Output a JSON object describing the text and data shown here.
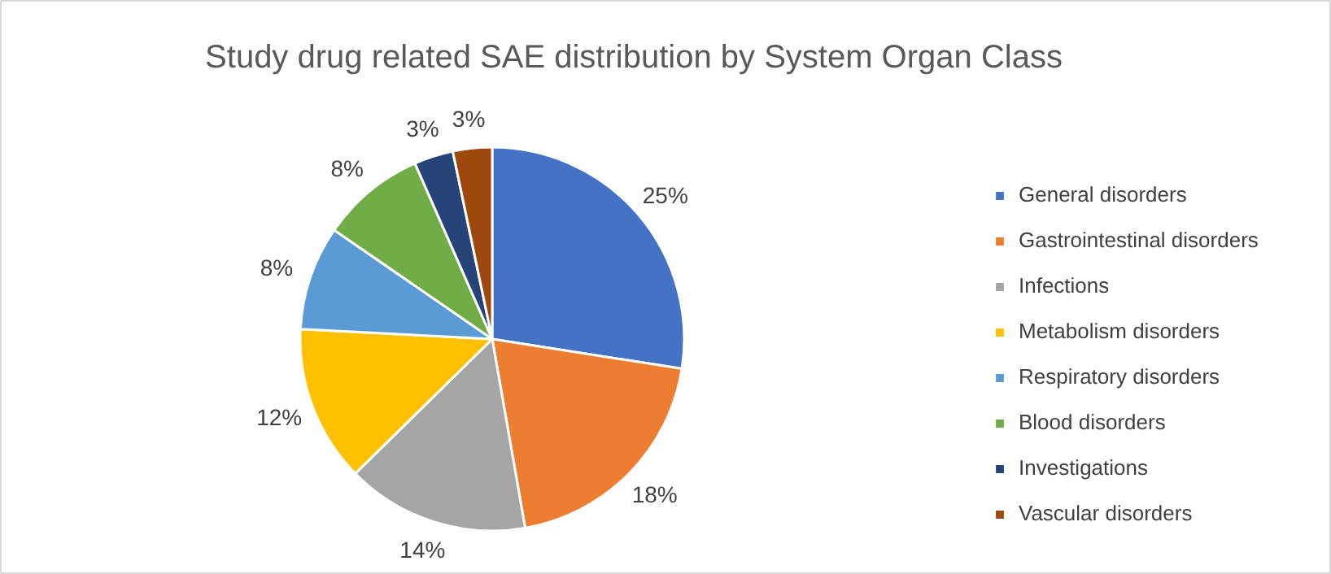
{
  "chart_data": {
    "type": "pie",
    "title": "Study drug related SAE distribution by System Organ Class",
    "categories": [
      "General disorders",
      "Gastrointestinal disorders",
      "Infections",
      "Metabolism disorders",
      "Respiratory disorders",
      "Blood disorders",
      "Investigations",
      "Vascular disorders"
    ],
    "values": [
      25,
      18,
      14,
      12,
      8,
      8,
      3,
      3
    ],
    "value_labels": [
      "25%",
      "18%",
      "14%",
      "12%",
      "8%",
      "8%",
      "3%",
      "3%"
    ],
    "colors": [
      "#4472c4",
      "#ed7d31",
      "#a5a5a5",
      "#ffc000",
      "#5b9bd5",
      "#70ad47",
      "#264478",
      "#9e480e"
    ],
    "legend": "right"
  }
}
